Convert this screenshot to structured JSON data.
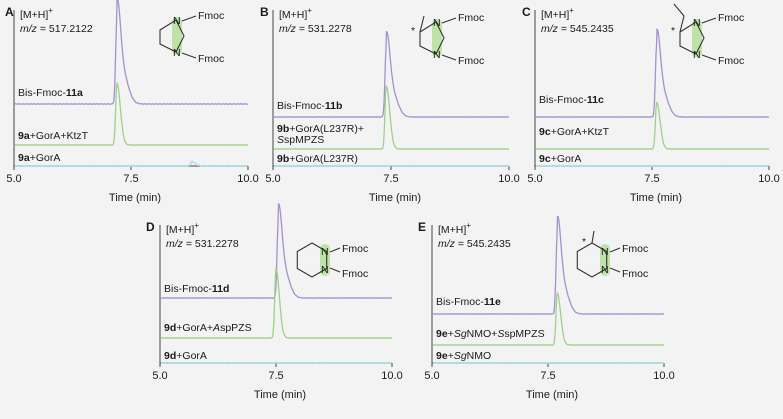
{
  "figure": {
    "background": "#f3f3f3",
    "colors": {
      "top": "#a490cf",
      "mid": "#9fd08c",
      "bot": "#a8dce8",
      "ring_highlight": "#b8e0a0"
    },
    "xlabel": "Time (min)",
    "x_tick_labels": [
      "5.0",
      "7.5",
      "10.0"
    ]
  },
  "chart_data": [
    {
      "id": "A",
      "type": "line",
      "title": "[M+H]+ m/z = 517.2122",
      "mh_text": "[M+H]",
      "mh_sup": "+",
      "mz_prefix": "m/z",
      "mz_value": " = 517.2122",
      "structure": {
        "ring": "5-membered",
        "substituents": [
          "Fmoc",
          "Fmoc"
        ],
        "labels": [
          "N",
          "N"
        ],
        "stereocenter": false
      },
      "xlabel": "Time (min)",
      "xlim": [
        5.0,
        10.0
      ],
      "series": [
        {
          "name": "Bis-Fmoc-11a",
          "label_parts": [
            "Bis-Fmoc-",
            "11a",
            ""
          ],
          "color": "#a490cf",
          "peak_time": 7.2,
          "relative_height": 1.0
        },
        {
          "name": "9a+GorA+KtzT",
          "label_parts": [
            "9a",
            "+GorA+KtzT"
          ],
          "color": "#9fd08c",
          "peak_time": 7.2,
          "relative_height": 0.72
        },
        {
          "name": "9a+GorA",
          "label_parts": [
            "9a",
            "+GorA"
          ],
          "color": "#a8dce8",
          "peak_time": 8.8,
          "relative_height": 0.05
        }
      ]
    },
    {
      "id": "B",
      "type": "line",
      "title": "[M+H]+ m/z = 531.2278",
      "mh_text": "[M+H]",
      "mh_sup": "+",
      "mz_prefix": "m/z",
      "mz_value": " = 531.2278",
      "structure": {
        "ring": "5-membered",
        "substituents": [
          "Fmoc",
          "Fmoc"
        ],
        "labels": [
          "N",
          "N"
        ],
        "stereocenter": true,
        "stereo_mark": "*"
      },
      "xlabel": "Time (min)",
      "xlim": [
        5.0,
        10.0
      ],
      "series": [
        {
          "name": "Bis-Fmoc-11b",
          "label_parts": [
            "Bis-Fmoc-",
            "11b",
            ""
          ],
          "color": "#a490cf",
          "peak_time": 7.4,
          "relative_height": 1.0
        },
        {
          "name": "9b+GorA(L237R)+SspMPZS",
          "label_parts": [
            "9b",
            "+GorA(L237R)+",
            "S",
            "spMPZS"
          ],
          "color": "#9fd08c",
          "peak_time": 7.4,
          "relative_height": 0.9
        },
        {
          "name": "9b+GorA(L237R)",
          "label_parts": [
            "9b",
            "+GorA(L237R)"
          ],
          "color": "#a8dce8",
          "peak_time": 7.4,
          "relative_height": 0.0
        }
      ]
    },
    {
      "id": "C",
      "type": "line",
      "title": "[M+H]+ m/z = 545.2435",
      "mh_text": "[M+H]",
      "mh_sup": "+",
      "mz_prefix": "m/z",
      "mz_value": " = 545.2435",
      "structure": {
        "ring": "5-membered",
        "substituents": [
          "Fmoc",
          "Fmoc"
        ],
        "labels": [
          "N",
          "N"
        ],
        "stereocenter": true,
        "stereo_mark": "*"
      },
      "xlabel": "Time (min)",
      "xlim": [
        5.0,
        10.0
      ],
      "series": [
        {
          "name": "Bis-Fmoc-11c",
          "label_parts": [
            "Bis-Fmoc-",
            "11c",
            ""
          ],
          "color": "#a490cf",
          "peak_time": 7.6,
          "relative_height": 1.0
        },
        {
          "name": "9c+GorA+KtzT",
          "label_parts": [
            "9c",
            "+GorA+KtzT"
          ],
          "color": "#9fd08c",
          "peak_time": 7.6,
          "relative_height": 0.65
        },
        {
          "name": "9c+GorA",
          "label_parts": [
            "9c",
            "+GorA"
          ],
          "color": "#a8dce8",
          "peak_time": 7.6,
          "relative_height": 0.0
        }
      ]
    },
    {
      "id": "D",
      "type": "line",
      "title": "[M+H]+ m/z = 531.2278",
      "mh_text": "[M+H]",
      "mh_sup": "+",
      "mz_prefix": "m/z",
      "mz_value": " = 531.2278",
      "structure": {
        "ring": "6-membered",
        "substituents": [
          "Fmoc",
          "Fmoc"
        ],
        "labels": [
          "N",
          "N"
        ],
        "stereocenter": false
      },
      "xlabel": "Time (min)",
      "xlim": [
        5.0,
        10.0
      ],
      "series": [
        {
          "name": "Bis-Fmoc-11d",
          "label_parts": [
            "Bis-Fmoc-",
            "11d",
            ""
          ],
          "color": "#a490cf",
          "peak_time": 7.55,
          "relative_height": 1.0
        },
        {
          "name": "9d+GorA+AspPZS",
          "label_parts": [
            "9d",
            "+GorA+",
            "A",
            "spPZS"
          ],
          "color": "#9fd08c",
          "peak_time": 7.5,
          "relative_height": 0.9
        },
        {
          "name": "9d+GorA",
          "label_parts": [
            "9d",
            "+GorA"
          ],
          "color": "#a8dce8",
          "peak_time": 7.5,
          "relative_height": 0.0
        }
      ]
    },
    {
      "id": "E",
      "type": "line",
      "title": "[M+H]+ m/z = 545.2435",
      "mh_text": "[M+H]",
      "mh_sup": "+",
      "mz_prefix": "m/z",
      "mz_value": " = 545.2435",
      "structure": {
        "ring": "6-membered",
        "substituents": [
          "Fmoc",
          "Fmoc"
        ],
        "labels": [
          "N",
          "N"
        ],
        "stereocenter": true,
        "stereo_mark": "*"
      },
      "xlabel": "Time (min)",
      "xlim": [
        5.0,
        10.0
      ],
      "series": [
        {
          "name": "Bis-Fmoc-11e",
          "label_parts": [
            "Bis-Fmoc-",
            "11e",
            ""
          ],
          "color": "#a490cf",
          "peak_time": 7.7,
          "relative_height": 1.0
        },
        {
          "name": "9e+SgNMO+SspMPZS",
          "label_parts": [
            "9e",
            "+",
            "Sg",
            "NMO+",
            "S",
            "spMPZS"
          ],
          "color": "#9fd08c",
          "peak_time": 7.7,
          "relative_height": 0.65
        },
        {
          "name": "9e+SgNMO",
          "label_parts": [
            "9e",
            "+",
            "Sg",
            "NMO"
          ],
          "color": "#a8dce8",
          "peak_time": 7.7,
          "relative_height": 0.0
        }
      ]
    }
  ]
}
